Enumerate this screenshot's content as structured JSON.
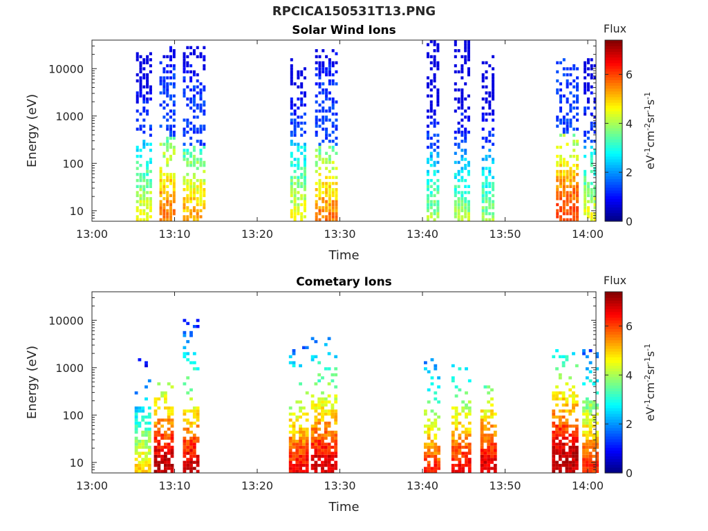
{
  "figure": {
    "title": "RPCICA150531T13.PNG"
  },
  "colors": {
    "axis": "#262626",
    "background": "#ffffff"
  },
  "chart_data": [
    {
      "type": "heatmap",
      "title": "Solar Wind Ions",
      "xlabel": "Time",
      "ylabel": "Energy (eV)",
      "y_scale": "log",
      "xlim": [
        "13:00",
        "14:01"
      ],
      "ylim": [
        6,
        40000
      ],
      "x_ticks": [
        "13:00",
        "13:10",
        "13:20",
        "13:30",
        "13:40",
        "13:50",
        "14:00"
      ],
      "y_ticks": [
        10,
        100,
        1000,
        10000
      ],
      "y_tick_labels": [
        "10",
        "100",
        "1000",
        "10000"
      ],
      "colorbar": {
        "label": "Flux",
        "unit": "eV-1cm-2sr-1s-1",
        "range": [
          0,
          7.4
        ],
        "ticks": [
          0,
          2,
          4,
          6
        ],
        "colormap": "jet"
      },
      "bursts": [
        {
          "start": "13:05:20",
          "end": "13:07:00",
          "min_energy": 6,
          "max_energy": 22000,
          "peak_flux": 4.8,
          "core_energy": 12
        },
        {
          "start": "13:08:10",
          "end": "13:09:50",
          "min_energy": 6,
          "max_energy": 28000,
          "peak_flux": 5.9,
          "core_energy": 15
        },
        {
          "start": "13:11:00",
          "end": "13:13:30",
          "min_energy": 6,
          "max_energy": 30000,
          "peak_flux": 5.6,
          "core_energy": 10
        },
        {
          "start": "13:24:00",
          "end": "13:26:00",
          "min_energy": 6,
          "max_energy": 16000,
          "peak_flux": 4.8,
          "core_energy": 12
        },
        {
          "start": "13:27:00",
          "end": "13:29:30",
          "min_energy": 6,
          "max_energy": 25000,
          "peak_flux": 5.9,
          "core_energy": 10
        },
        {
          "start": "13:40:30",
          "end": "13:42:00",
          "min_energy": 6,
          "max_energy": 38000,
          "peak_flux": 4.4,
          "core_energy": 8
        },
        {
          "start": "13:43:50",
          "end": "13:45:30",
          "min_energy": 6,
          "max_energy": 38000,
          "peak_flux": 4.4,
          "core_energy": 8
        },
        {
          "start": "13:47:10",
          "end": "13:48:40",
          "min_energy": 6,
          "max_energy": 22000,
          "peak_flux": 4.3,
          "core_energy": 8
        },
        {
          "start": "13:56:10",
          "end": "13:58:40",
          "min_energy": 6,
          "max_energy": 16000,
          "peak_flux": 6.2,
          "core_energy": 18
        },
        {
          "start": "13:59:30",
          "end": "14:01:00",
          "min_energy": 6,
          "max_energy": 16000,
          "peak_flux": 4.8,
          "core_energy": 10
        }
      ]
    },
    {
      "type": "heatmap",
      "title": "Cometary Ions",
      "xlabel": "Time",
      "ylabel": "Energy (eV)",
      "y_scale": "log",
      "xlim": [
        "13:00",
        "14:01"
      ],
      "ylim": [
        6,
        40000
      ],
      "x_ticks": [
        "13:00",
        "13:10",
        "13:20",
        "13:30",
        "13:40",
        "13:50",
        "14:00"
      ],
      "y_ticks": [
        10,
        100,
        1000,
        10000
      ],
      "y_tick_labels": [
        "10",
        "100",
        "1000",
        "10000"
      ],
      "colorbar": {
        "label": "Flux",
        "unit": "eV-1cm-2sr-1s-1",
        "range": [
          0,
          7.4
        ],
        "ticks": [
          0,
          2,
          4,
          6
        ],
        "colormap": "jet"
      },
      "bursts": [
        {
          "start": "13:05:10",
          "end": "13:07:00",
          "min_energy": 6,
          "max_energy": 1800,
          "peak_flux": 5.2,
          "core_energy": 10
        },
        {
          "start": "13:07:30",
          "end": "13:09:40",
          "min_energy": 6,
          "max_energy": 700,
          "peak_flux": 7.2,
          "core_energy": 14
        },
        {
          "start": "13:11:00",
          "end": "13:12:40",
          "min_energy": 6,
          "max_energy": 10000,
          "peak_flux": 7.2,
          "core_energy": 10
        },
        {
          "start": "13:23:50",
          "end": "13:26:00",
          "min_energy": 6,
          "max_energy": 3000,
          "peak_flux": 6.8,
          "core_energy": 10
        },
        {
          "start": "13:26:30",
          "end": "13:29:30",
          "min_energy": 6,
          "max_energy": 4200,
          "peak_flux": 7.0,
          "core_energy": 14
        },
        {
          "start": "13:40:10",
          "end": "13:42:00",
          "min_energy": 6,
          "max_energy": 1700,
          "peak_flux": 6.6,
          "core_energy": 8
        },
        {
          "start": "13:43:30",
          "end": "13:45:40",
          "min_energy": 6,
          "max_energy": 1100,
          "peak_flux": 6.8,
          "core_energy": 10
        },
        {
          "start": "13:47:00",
          "end": "13:48:40",
          "min_energy": 6,
          "max_energy": 1100,
          "peak_flux": 7.0,
          "core_energy": 12
        },
        {
          "start": "13:55:40",
          "end": "13:58:40",
          "min_energy": 6,
          "max_energy": 2300,
          "peak_flux": 7.2,
          "core_energy": 20
        },
        {
          "start": "13:59:20",
          "end": "14:01:00",
          "min_energy": 6,
          "max_energy": 2300,
          "peak_flux": 6.4,
          "core_energy": 12
        }
      ]
    }
  ]
}
